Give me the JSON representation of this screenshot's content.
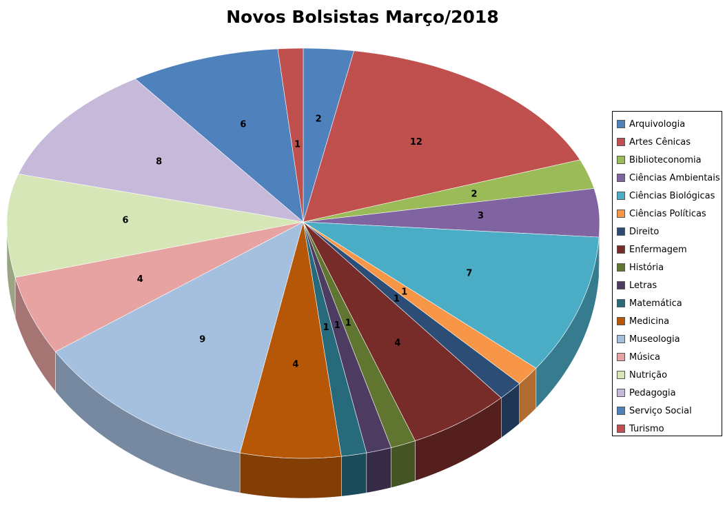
{
  "chart_data": {
    "type": "pie",
    "title": "Novos Bolsistas Março/2018",
    "three_d": true,
    "legend_position": "right",
    "categories": [
      "Arquivologia",
      "Artes Cênicas",
      "Biblioteconomia",
      "Ciências Ambientais",
      "Ciências Biológicas",
      "Ciências Políticas",
      "Direito",
      "Enfermagem",
      "História",
      "Letras",
      "Matemática",
      "Medicina",
      "Museologia",
      "Música",
      "Nutrição",
      "Pedagogia",
      "Serviço Social",
      "Turismo"
    ],
    "values": [
      2,
      12,
      2,
      3,
      7,
      1,
      1,
      4,
      1,
      1,
      1,
      4,
      9,
      4,
      6,
      8,
      6,
      1
    ],
    "colors": [
      "#4f81bd",
      "#c0504d",
      "#9bbb59",
      "#8064a2",
      "#4bacc6",
      "#f79646",
      "#2c4d75",
      "#772c2a",
      "#5f7530",
      "#4d3b62",
      "#276a7c",
      "#b65708",
      "#a5bfdf",
      "#e6a3a1",
      "#d7e6b7",
      "#c7b9d9",
      "#4f81bd",
      "#c0504d"
    ]
  }
}
